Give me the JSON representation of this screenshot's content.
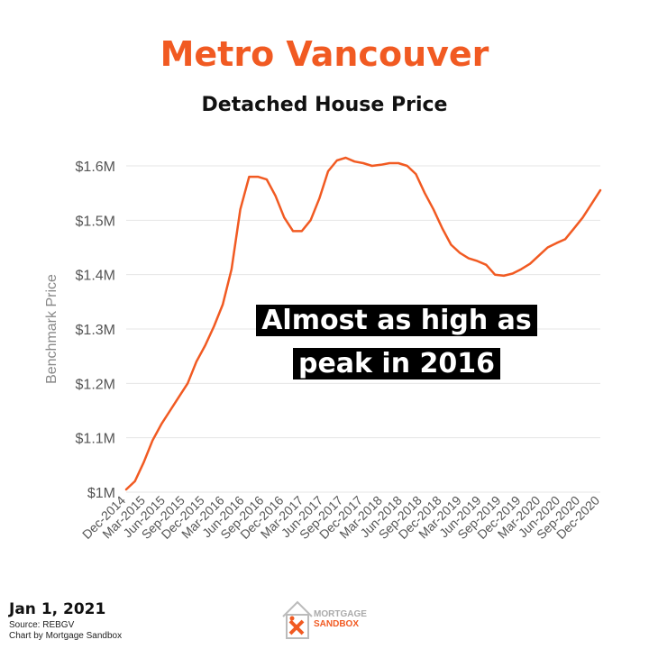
{
  "title": "Metro Vancouver",
  "subtitle": "Detached House Price",
  "annotation": [
    "Almost as high as",
    "peak in 2016"
  ],
  "footer": {
    "date": "Jan 1, 2021",
    "source": "Source: REBGV",
    "credit": "Chart by Mortgage Sandbox"
  },
  "logo": {
    "line1": "MORTGAGE",
    "line2": "SANDBOX"
  },
  "colors": {
    "accent": "#f15a22",
    "grid": "#e4e4e4",
    "text": "#555555"
  },
  "chart_data": {
    "type": "line",
    "title": "Detached House Price",
    "ylabel": "Benchmark Price",
    "xlabel": "",
    "ylim": [
      1000000,
      1600000
    ],
    "y_ticks": [
      {
        "value": 1000000,
        "label": "$1M"
      },
      {
        "value": 1100000,
        "label": "$1.1M"
      },
      {
        "value": 1200000,
        "label": "$1.2M"
      },
      {
        "value": 1300000,
        "label": "$1.3M"
      },
      {
        "value": 1400000,
        "label": "$1.4M"
      },
      {
        "value": 1500000,
        "label": "$1.5M"
      },
      {
        "value": 1600000,
        "label": "$1.6M"
      }
    ],
    "x_tick_labels": [
      "Dec-2014",
      "Mar-2015",
      "Jun-2015",
      "Sep-2015",
      "Dec-2015",
      "Mar-2016",
      "Jun-2016",
      "Sep-2016",
      "Dec-2016",
      "Mar-2017",
      "Jun-2017",
      "Sep-2017",
      "Dec-2017",
      "Mar-2018",
      "Jun-2018",
      "Sep-2018",
      "Dec-2018",
      "Mar-2019",
      "Jun-2019",
      "Sep-2019",
      "Dec-2019",
      "Mar-2020",
      "Jun-2020",
      "Sep-2020",
      "Dec-2020"
    ],
    "grid": true,
    "series": [
      {
        "values": [
          1005000,
          1020000,
          1055000,
          1095000,
          1125000,
          1150000,
          1175000,
          1200000,
          1240000,
          1270000,
          1305000,
          1345000,
          1410000,
          1520000,
          1580000,
          1580000,
          1575000,
          1545000,
          1505000,
          1480000,
          1480000,
          1500000,
          1540000,
          1590000,
          1610000,
          1615000,
          1608000,
          1605000,
          1600000,
          1602000,
          1605000,
          1605000,
          1600000,
          1585000,
          1550000,
          1520000,
          1485000,
          1455000,
          1440000,
          1430000,
          1425000,
          1418000,
          1400000,
          1398000,
          1402000,
          1410000,
          1420000,
          1435000,
          1450000,
          1458000,
          1465000,
          1485000,
          1505000,
          1530000,
          1555000
        ]
      }
    ]
  }
}
